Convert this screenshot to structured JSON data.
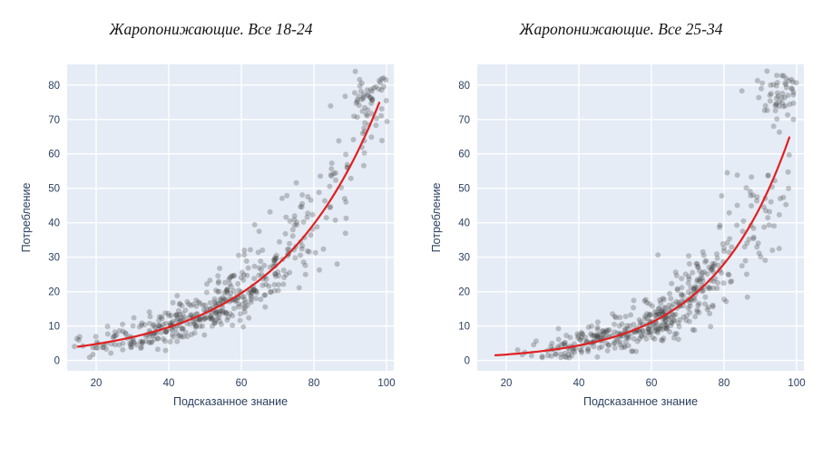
{
  "style": {
    "page_bg": "#ffffff",
    "plot_bg": "#e5ecf6",
    "grid_color": "#ffffff",
    "tick_color": "#2a3f5f",
    "title_color": "#141414",
    "point_color": "#3d3d3d",
    "point_opacity": 0.28,
    "trend_color": "#e02020"
  },
  "chart_data": [
    {
      "type": "scatter",
      "title": "Жаропонижающие. Все 18-24",
      "xlabel": "Подсказанное знание",
      "ylabel": "Потребление",
      "xlim": [
        12,
        102
      ],
      "ylim": [
        -3,
        86
      ],
      "xticks": [
        20,
        40,
        60,
        80,
        100
      ],
      "yticks": [
        0,
        10,
        20,
        30,
        40,
        50,
        60,
        70,
        80
      ],
      "grid": true,
      "legend": false,
      "trend": {
        "shape": "exponential",
        "a": 2.354,
        "b": 0.0353,
        "x_start": 15,
        "x_end": 98,
        "samples": {
          "x": [
            15,
            20,
            30,
            40,
            50,
            60,
            70,
            80,
            90,
            98
          ],
          "y": [
            4.0,
            4.8,
            6.8,
            9.7,
            13.8,
            19.6,
            27.9,
            39.7,
            56.5,
            74.9
          ]
        }
      },
      "scatter_model": {
        "seed": 42,
        "count": 480,
        "x_mean": 54,
        "x_sd": 20,
        "x_min": 14,
        "x_max": 100,
        "mult_noise": 0.22,
        "add_noise": 1.8,
        "cluster": {
          "count": 45,
          "x_center": 94.5,
          "x_sd": 2.6,
          "y_center": 76,
          "y_sd": 3.2
        }
      }
    },
    {
      "type": "scatter",
      "title": "Жаропонижающие. Все 25-34",
      "xlabel": "Подсказанное знание",
      "ylabel": "Потребление",
      "xlim": [
        12,
        102
      ],
      "ylim": [
        -3,
        86
      ],
      "xticks": [
        20,
        40,
        60,
        80,
        100
      ],
      "yticks": [
        0,
        10,
        20,
        30,
        40,
        50,
        60,
        70,
        80
      ],
      "grid": true,
      "legend": false,
      "trend": {
        "shape": "exponential",
        "a": 0.68,
        "b": 0.0465,
        "x_start": 17,
        "x_end": 98,
        "samples": {
          "x": [
            17,
            20,
            30,
            40,
            50,
            60,
            70,
            80,
            90,
            98
          ],
          "y": [
            1.5,
            1.7,
            2.7,
            4.4,
            7.0,
            11.1,
            17.6,
            28.1,
            44.7,
            64.8
          ]
        }
      },
      "scatter_model": {
        "seed": 1337,
        "count": 480,
        "x_mean": 62,
        "x_sd": 18,
        "x_min": 16,
        "x_max": 100,
        "mult_noise": 0.24,
        "add_noise": 1.8,
        "cluster": {
          "count": 45,
          "x_center": 95,
          "x_sd": 2.4,
          "y_center": 77,
          "y_sd": 3.0
        }
      }
    }
  ]
}
